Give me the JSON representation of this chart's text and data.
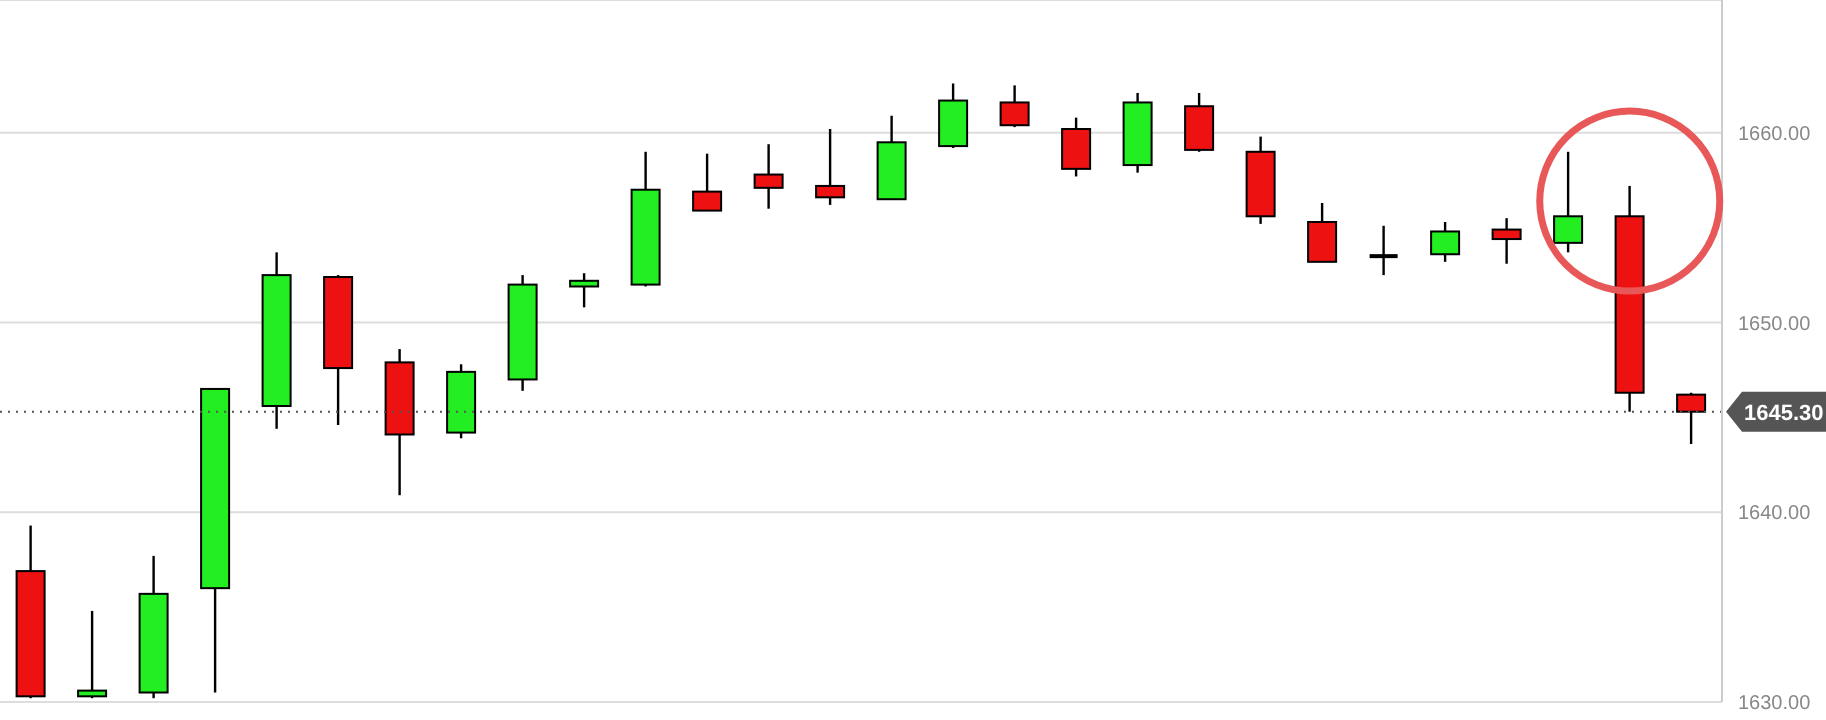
{
  "chart_data": {
    "type": "candlestick",
    "categories": [
      null,
      null,
      null,
      null,
      null,
      null,
      null,
      null,
      null,
      null,
      null,
      null,
      null,
      null,
      null,
      null,
      null,
      null,
      null,
      null,
      null,
      null,
      null,
      null,
      null,
      null,
      null,
      null
    ],
    "ohlc": [
      [
        1636.9,
        1639.3,
        1630.2,
        1630.3
      ],
      [
        1630.3,
        1634.8,
        1630.2,
        1630.6
      ],
      [
        1630.5,
        1637.7,
        1630.2,
        1635.7
      ],
      [
        1636.0,
        1646.5,
        1630.5,
        1646.5
      ],
      [
        1645.6,
        1653.7,
        1644.4,
        1652.5
      ],
      [
        1652.4,
        1652.5,
        1644.6,
        1647.6
      ],
      [
        1647.9,
        1648.6,
        1640.9,
        1644.1
      ],
      [
        1644.2,
        1647.8,
        1643.9,
        1647.4
      ],
      [
        1647.0,
        1652.5,
        1646.4,
        1652.0
      ],
      [
        1651.9,
        1652.6,
        1650.8,
        1652.2
      ],
      [
        1652.0,
        1659.0,
        1651.9,
        1657.0
      ],
      [
        1656.9,
        1658.9,
        1655.9,
        1655.9
      ],
      [
        1657.8,
        1659.4,
        1656.0,
        1657.1
      ],
      [
        1657.2,
        1660.2,
        1656.2,
        1656.6
      ],
      [
        1656.5,
        1660.9,
        1656.5,
        1659.5
      ],
      [
        1659.3,
        1662.6,
        1659.2,
        1661.7
      ],
      [
        1661.6,
        1662.5,
        1660.3,
        1660.4
      ],
      [
        1660.2,
        1660.8,
        1657.7,
        1658.1
      ],
      [
        1658.3,
        1662.1,
        1657.9,
        1661.6
      ],
      [
        1661.4,
        1662.1,
        1659.0,
        1659.1
      ],
      [
        1659.0,
        1659.8,
        1655.2,
        1655.6
      ],
      [
        1655.3,
        1656.3,
        1653.2,
        1653.2
      ],
      [
        1653.5,
        1655.1,
        1652.5,
        1653.5
      ],
      [
        1653.6,
        1655.3,
        1653.2,
        1654.8
      ],
      [
        1654.9,
        1655.5,
        1653.1,
        1654.4
      ],
      [
        1654.2,
        1659.0,
        1653.7,
        1655.6
      ],
      [
        1655.6,
        1657.2,
        1645.3,
        1646.3
      ],
      [
        1646.2,
        1646.3,
        1643.6,
        1645.3
      ]
    ],
    "colors": [
      "#ee1111",
      "#22ee22",
      "#22ee22",
      "#22ee22",
      "#22ee22",
      "#ee1111",
      "#ee1111",
      "#22ee22",
      "#22ee22",
      "#22ee22",
      "#22ee22",
      "#ee1111",
      "#ee1111",
      "#ee1111",
      "#22ee22",
      "#22ee22",
      "#ee1111",
      "#ee1111",
      "#22ee22",
      "#ee1111",
      "#ee1111",
      "#ee1111",
      "#000000",
      "#22ee22",
      "#ee1111",
      "#22ee22",
      "#ee1111",
      "#ee1111"
    ],
    "ylim": [
      1630,
      1667
    ],
    "yticks": [
      {
        "value": 1630,
        "label": "1630.00"
      },
      {
        "value": 1640,
        "label": "1640.00"
      },
      {
        "value": 1650,
        "label": "1650.00"
      },
      {
        "value": 1660,
        "label": "1660.00"
      }
    ],
    "grid": "y",
    "ref_lines": [
      {
        "axis": "y",
        "value": 1645.3,
        "label": "1645.30",
        "line_style": "dotted",
        "color": "#555555"
      }
    ]
  }
}
